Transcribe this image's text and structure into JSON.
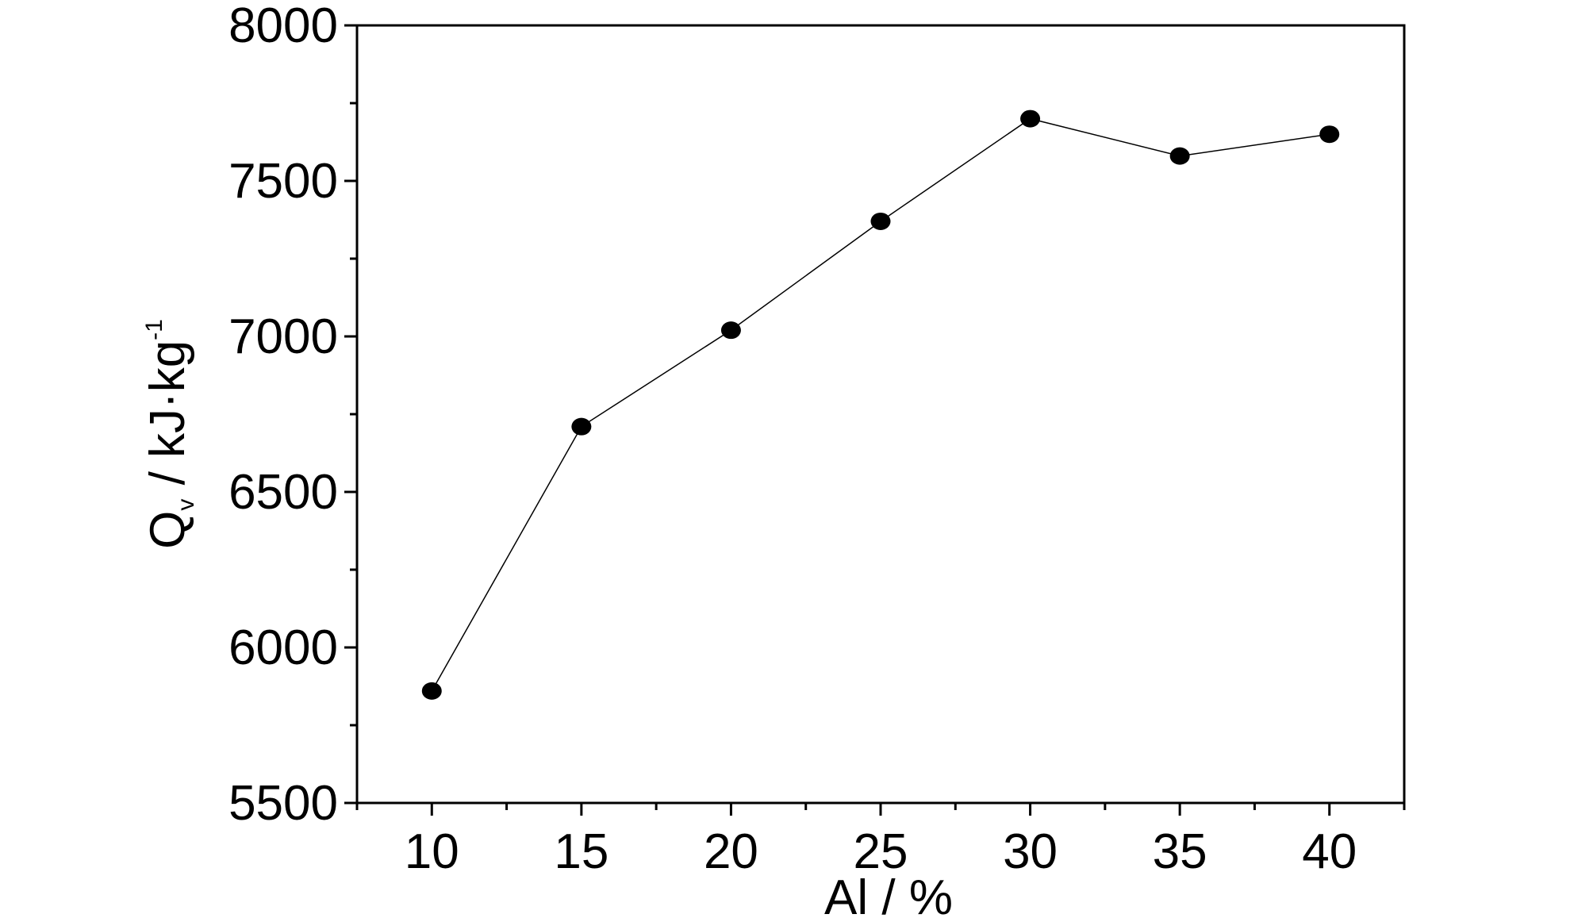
{
  "chart_data": {
    "type": "line",
    "title": "",
    "xlabel": "Al / %",
    "ylabel": {
      "main": "Q",
      "sub": "v",
      "unit": " / kJ·kg",
      "sup": "-1"
    },
    "xlim": [
      7.5,
      42.5
    ],
    "ylim": [
      5500,
      8000
    ],
    "x_ticks": [
      10,
      15,
      20,
      25,
      30,
      35,
      40
    ],
    "y_ticks": [
      5500,
      6000,
      6500,
      7000,
      7500,
      8000
    ],
    "grid": false,
    "legend": "none",
    "marker": "filled-circle",
    "line_color": "#000000",
    "series": [
      {
        "x": [
          10,
          15,
          20,
          25,
          30,
          35,
          40
        ],
        "values": [
          5860,
          6710,
          7020,
          7370,
          7700,
          7580,
          7650
        ]
      }
    ]
  }
}
